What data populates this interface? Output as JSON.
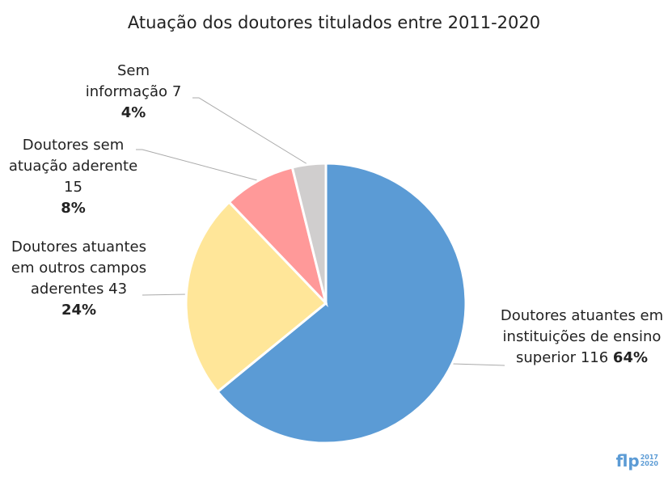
{
  "chart_data": {
    "type": "pie",
    "title": "Atuação dos doutores titulados entre 2011-2020",
    "categories": [
      "Doutores atuantes em instituições de ensino superior",
      "Doutores atuantes em outros campos aderentes",
      "Doutores sem atuação aderente",
      "Sem informação"
    ],
    "values": [
      116,
      43,
      15,
      7
    ],
    "shares": {
      "values": [
        64,
        24,
        8,
        4
      ],
      "value_labels": [
        "64%",
        "24%",
        "8%",
        "4%"
      ]
    },
    "colors": [
      "#5b9bd5",
      "#ffe699",
      "#ff9999",
      "#d0cece"
    ]
  },
  "logo": {
    "text": "flp",
    "years": [
      "2017",
      "2020"
    ]
  }
}
